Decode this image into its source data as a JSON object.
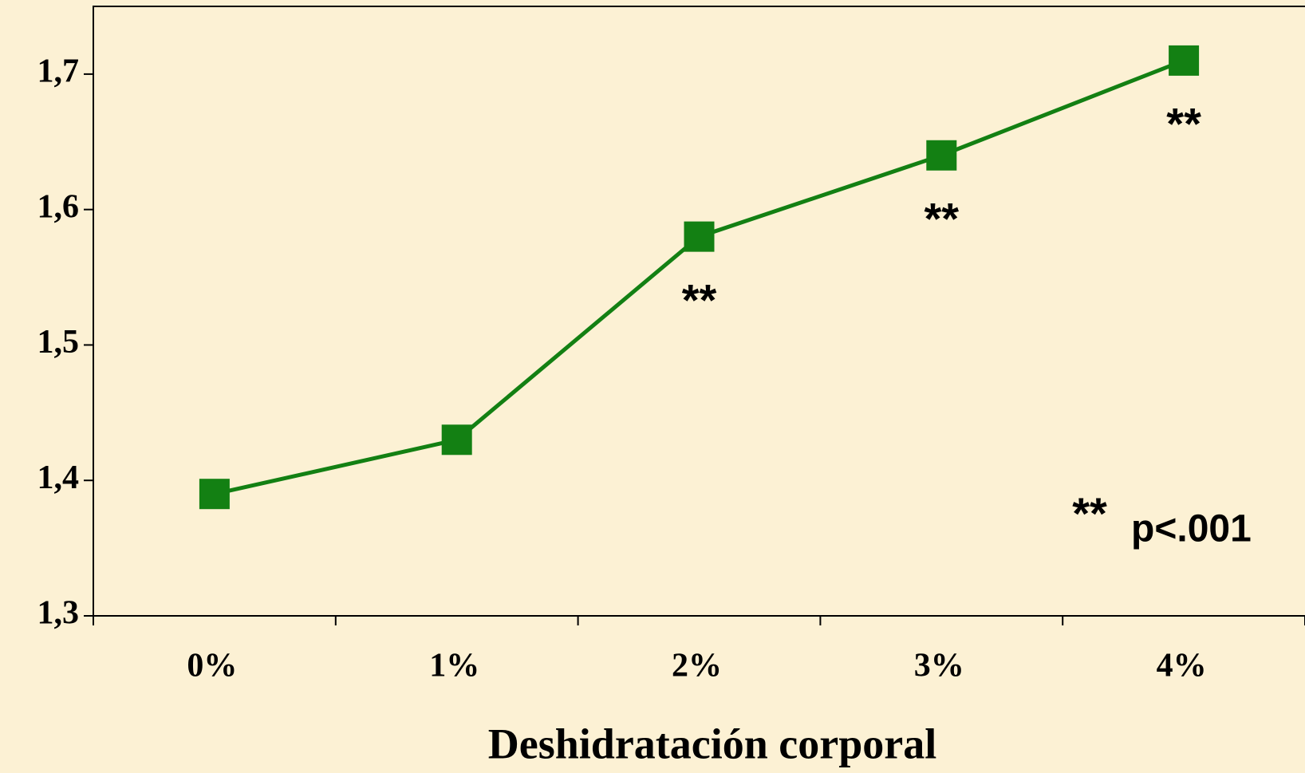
{
  "chart_data": {
    "type": "line",
    "xlabel": "Deshidratación corporal",
    "categories": [
      "0%",
      "1%",
      "2%",
      "3%",
      "4%"
    ],
    "series": [
      {
        "name": null,
        "color": "#138013",
        "values": [
          1.39,
          1.43,
          1.58,
          1.64,
          1.71
        ]
      }
    ],
    "ylim": [
      1.3,
      1.75
    ],
    "yticks": [
      {
        "value": 1.3,
        "label": "1,3"
      },
      {
        "value": 1.4,
        "label": "1,4"
      },
      {
        "value": 1.5,
        "label": "1,5"
      },
      {
        "value": 1.6,
        "label": "1,6"
      },
      {
        "value": 1.7,
        "label": "1,7"
      }
    ],
    "annotations": [
      {
        "category": "2%",
        "text": "**"
      },
      {
        "category": "3%",
        "text": "**"
      },
      {
        "category": "4%",
        "text": "**"
      }
    ],
    "note": {
      "marker": "**",
      "text": "p<.001"
    }
  }
}
